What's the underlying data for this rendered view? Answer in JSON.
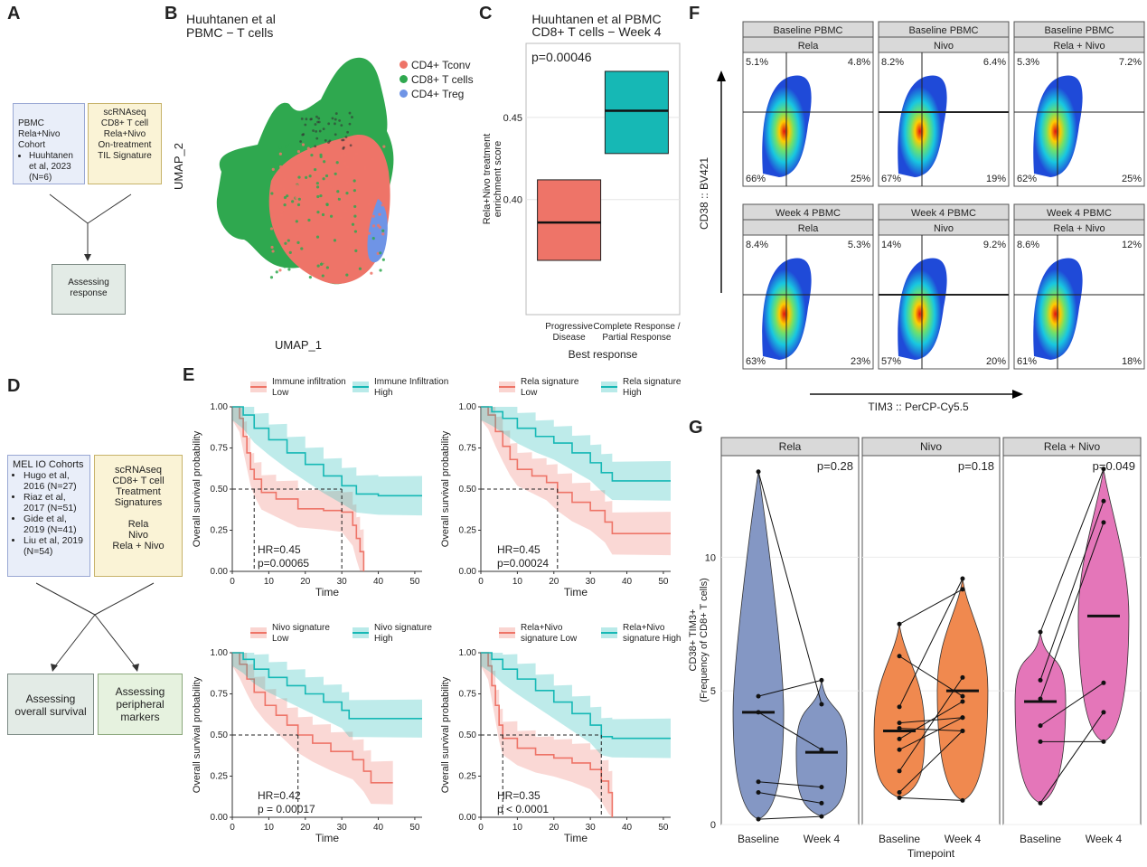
{
  "panel_labels": [
    "A",
    "B",
    "C",
    "D",
    "E",
    "F",
    "G"
  ],
  "panelA": {
    "cohort_box": {
      "title": "PBMC\nRela+Nivo\nCohort",
      "bullet": "Huuhtanen et al, 2023 (N=6)"
    },
    "method_box": "scRNAseq\nCD8+ T cell\nRela+Nivo\nOn-treatment\nTIL Signature",
    "result_box": "Assessing\nresponse"
  },
  "panelB": {
    "title": "Huuhtanen et al\nPBMC − T cells",
    "xlabel": "UMAP_1",
    "ylabel": "UMAP_2",
    "legend": [
      {
        "label": "CD4+ Tconv",
        "color": "#ee7468"
      },
      {
        "label": "CD8+ T cells",
        "color": "#2fa84f"
      },
      {
        "label": "CD4+ Treg",
        "color": "#6f94e6"
      }
    ]
  },
  "panelC": {
    "title": "Huuhtanen et al PBMC\nCD8+ T cells − Week 4",
    "pvalue": "p=0.00046",
    "chart_data": {
      "type": "box",
      "categories": [
        "Progressive\nDisease",
        "Complete Response /\nPartial Response"
      ],
      "colors": [
        "#ee7468",
        "#16b8b5"
      ],
      "boxes": [
        {
          "q1": 0.363,
          "median": 0.386,
          "q3": 0.412
        },
        {
          "q1": 0.428,
          "median": 0.454,
          "q3": 0.478
        }
      ],
      "yticks": [
        0.4,
        0.45
      ],
      "ylim": [
        0.33,
        0.495
      ],
      "xlabel": "Best response",
      "ylabel": "Rela+Nivo treatment\nenrichment score"
    }
  },
  "panelD": {
    "cohort_box": {
      "title": "MEL IO Cohorts",
      "bullets": [
        "Hugo et al, 2016 (N=27)",
        "Riaz et al, 2017 (N=51)",
        "Gide et al, 2019 (N=41)",
        "Liu et al, 2019 (N=54)"
      ]
    },
    "method_box": "scRNAseq\nCD8+ T cell\nTreatment\nSignatures\n\nRela\nNivo\nRela + Nivo",
    "result_box_1": "Assessing\noverall survival",
    "result_box_2": "Assessing\nperipheral\nmarkers"
  },
  "panelE": {
    "xlabel": "Time",
    "ylabel": "Overall survival probability",
    "xticks": [
      0,
      10,
      20,
      30,
      40,
      50
    ],
    "yticks": [
      "0.00",
      "0.25",
      "0.50",
      "0.75",
      "1.00"
    ],
    "colors": {
      "low": "#ee7468",
      "high": "#16b8b5"
    },
    "plots": [
      {
        "low_label": "Immune infiltration\nLow",
        "high_label": "Immune Infiltration\nHigh",
        "hr": "HR=0.45",
        "p": "p=0.00065",
        "low": [
          [
            0,
            1
          ],
          [
            2,
            0.93
          ],
          [
            3,
            0.82
          ],
          [
            4,
            0.72
          ],
          [
            5,
            0.62
          ],
          [
            6,
            0.56
          ],
          [
            8,
            0.48
          ],
          [
            12,
            0.44
          ],
          [
            18,
            0.38
          ],
          [
            25,
            0.37
          ],
          [
            30,
            0.36
          ],
          [
            33,
            0.28
          ],
          [
            34,
            0.2
          ],
          [
            35,
            0.12
          ],
          [
            36,
            0
          ]
        ],
        "high": [
          [
            0,
            1
          ],
          [
            3,
            0.95
          ],
          [
            6,
            0.87
          ],
          [
            10,
            0.8
          ],
          [
            15,
            0.72
          ],
          [
            20,
            0.65
          ],
          [
            25,
            0.58
          ],
          [
            30,
            0.52
          ],
          [
            34,
            0.47
          ],
          [
            40,
            0.46
          ],
          [
            52,
            0.46
          ]
        ],
        "median_low": 6,
        "median_high": 30
      },
      {
        "low_label": "Rela signature\nLow",
        "high_label": "Rela signature\nHigh",
        "hr": "HR=0.45",
        "p": "p=0.00024",
        "low": [
          [
            0,
            1
          ],
          [
            2,
            0.95
          ],
          [
            4,
            0.85
          ],
          [
            6,
            0.76
          ],
          [
            8,
            0.68
          ],
          [
            10,
            0.62
          ],
          [
            14,
            0.58
          ],
          [
            18,
            0.54
          ],
          [
            21,
            0.48
          ],
          [
            25,
            0.42
          ],
          [
            30,
            0.37
          ],
          [
            34,
            0.3
          ],
          [
            36,
            0.23
          ],
          [
            52,
            0.23
          ]
        ],
        "high": [
          [
            0,
            1
          ],
          [
            3,
            0.97
          ],
          [
            6,
            0.93
          ],
          [
            10,
            0.87
          ],
          [
            15,
            0.82
          ],
          [
            20,
            0.78
          ],
          [
            25,
            0.72
          ],
          [
            30,
            0.66
          ],
          [
            33,
            0.6
          ],
          [
            36,
            0.55
          ],
          [
            52,
            0.55
          ]
        ],
        "median_low": 21
      },
      {
        "low_label": "Nivo signature\nLow",
        "high_label": "Nivo signature\nHigh",
        "hr": "HR=0.42",
        "p": "p = 0.00017",
        "low": [
          [
            0,
            1
          ],
          [
            2,
            0.93
          ],
          [
            4,
            0.84
          ],
          [
            6,
            0.76
          ],
          [
            9,
            0.68
          ],
          [
            12,
            0.62
          ],
          [
            15,
            0.56
          ],
          [
            18,
            0.5
          ],
          [
            22,
            0.45
          ],
          [
            27,
            0.4
          ],
          [
            33,
            0.35
          ],
          [
            36,
            0.28
          ],
          [
            38,
            0.21
          ],
          [
            44,
            0.21
          ]
        ],
        "high": [
          [
            0,
            1
          ],
          [
            3,
            0.96
          ],
          [
            6,
            0.9
          ],
          [
            10,
            0.85
          ],
          [
            15,
            0.8
          ],
          [
            20,
            0.75
          ],
          [
            25,
            0.7
          ],
          [
            30,
            0.65
          ],
          [
            32,
            0.6
          ],
          [
            52,
            0.6
          ]
        ],
        "median_low": 18
      },
      {
        "low_label": "Rela+Nivo\nsignature Low",
        "high_label": "Rela+Nivo\nsignature High",
        "hr": "HR=0.35",
        "p": "p < 0.0001",
        "low": [
          [
            0,
            1
          ],
          [
            2,
            0.92
          ],
          [
            3,
            0.8
          ],
          [
            4,
            0.68
          ],
          [
            5,
            0.56
          ],
          [
            6,
            0.48
          ],
          [
            10,
            0.42
          ],
          [
            15,
            0.38
          ],
          [
            20,
            0.36
          ],
          [
            25,
            0.33
          ],
          [
            30,
            0.29
          ],
          [
            33,
            0.22
          ],
          [
            35,
            0.15
          ],
          [
            36,
            0
          ]
        ],
        "high": [
          [
            0,
            1
          ],
          [
            3,
            0.96
          ],
          [
            6,
            0.9
          ],
          [
            10,
            0.84
          ],
          [
            15,
            0.77
          ],
          [
            20,
            0.7
          ],
          [
            25,
            0.63
          ],
          [
            30,
            0.56
          ],
          [
            33,
            0.49
          ],
          [
            36,
            0.48
          ],
          [
            52,
            0.48
          ]
        ],
        "median_low": 6,
        "median_high": 33
      }
    ]
  },
  "panelF": {
    "xlabel": "TIM3 :: PerCP-Cy5.5",
    "ylabel": "CD38 :: BV421",
    "plots": [
      {
        "header1": "Baseline PBMC",
        "header2": "Rela",
        "ul": "5.1%",
        "ur": "4.8%",
        "ll": "66%",
        "lr": "25%"
      },
      {
        "header1": "Baseline PBMC",
        "header2": "Nivo",
        "ul": "8.2%",
        "ur": "6.4%",
        "ll": "67%",
        "lr": "19%"
      },
      {
        "header1": "Baseline PBMC",
        "header2": "Rela + Nivo",
        "ul": "5.3%",
        "ur": "7.2%",
        "ll": "62%",
        "lr": "25%"
      },
      {
        "header1": "Week 4 PBMC",
        "header2": "Rela",
        "ul": "8.4%",
        "ur": "5.3%",
        "ll": "63%",
        "lr": "23%"
      },
      {
        "header1": "Week 4 PBMC",
        "header2": "Nivo",
        "ul": "14%",
        "ur": "9.2%",
        "ll": "57%",
        "lr": "20%"
      },
      {
        "header1": "Week 4 PBMC",
        "header2": "Rela + Nivo",
        "ul": "8.6%",
        "ur": "12%",
        "ll": "61%",
        "lr": "18%"
      }
    ]
  },
  "panelG": {
    "xlabel": "Timepoint",
    "ylabel": "CD38+ TIM3+\n(Frequency of CD8+ T cells)",
    "yticks": [
      0,
      5,
      10
    ],
    "ylim": [
      0,
      13.8
    ],
    "categories": [
      "Baseline",
      "Week 4"
    ],
    "facets": [
      {
        "name": "Rela",
        "p": "p=0.28",
        "color": "#8497c4",
        "pairs": [
          [
            13.2,
            4.5
          ],
          [
            4.8,
            5.4
          ],
          [
            1.6,
            1.4
          ],
          [
            1.2,
            0.8
          ],
          [
            0.2,
            0.3
          ],
          [
            4.2,
            2.8
          ]
        ],
        "median": [
          4.2,
          2.7
        ]
      },
      {
        "name": "Nivo",
        "p": "p=0.18",
        "color": "#f0894f",
        "pairs": [
          [
            7.5,
            8.8
          ],
          [
            6.3,
            4.8
          ],
          [
            4.4,
            9.2
          ],
          [
            3.8,
            4.0
          ],
          [
            3.6,
            3.5
          ],
          [
            3.2,
            4.6
          ],
          [
            2.8,
            4.0
          ],
          [
            2.0,
            5.5
          ],
          [
            1.2,
            3.5
          ],
          [
            1.0,
            0.9
          ]
        ],
        "median": [
          3.5,
          5.0
        ]
      },
      {
        "name": "Rela + Nivo",
        "p": "p=0.049",
        "color": "#e476b9",
        "pairs": [
          [
            7.2,
            13.3
          ],
          [
            5.4,
            12.1
          ],
          [
            4.7,
            11.3
          ],
          [
            3.7,
            5.3
          ],
          [
            3.1,
            3.1
          ],
          [
            0.8,
            4.2
          ]
        ],
        "median": [
          4.6,
          7.8
        ]
      }
    ]
  }
}
